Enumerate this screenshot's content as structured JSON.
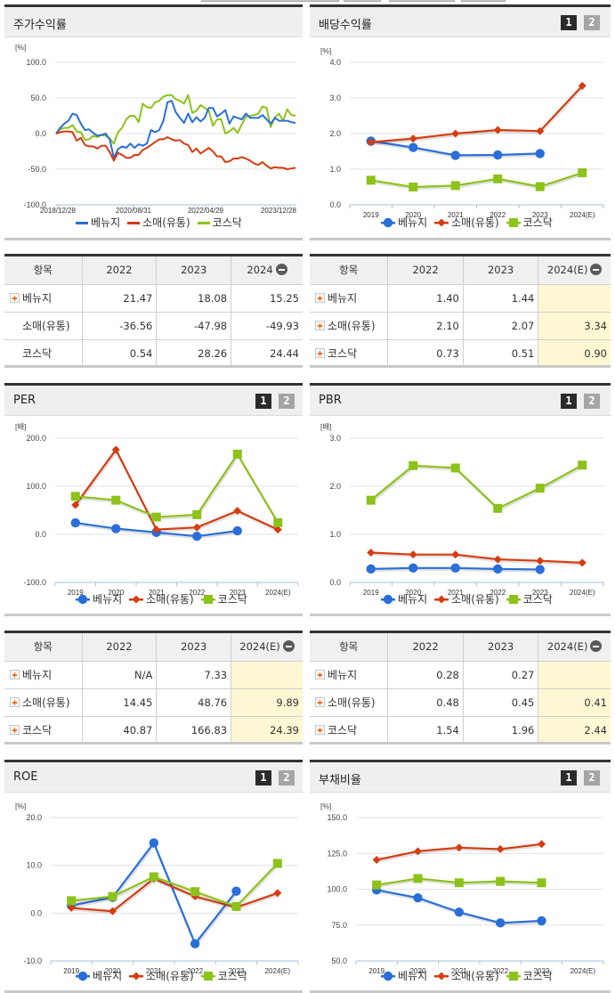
{
  "colors": {
    "venuzi": "#2a6ed8",
    "retail": "#d53c10",
    "kosdaq": "#8cc21a",
    "grid": "#e2e2e2",
    "estimate_bg": "#fdf8d3"
  },
  "legend": [
    "베뉴지",
    "소매(유통)",
    "코스닥"
  ],
  "pager": {
    "page1": "1",
    "page2": "2"
  },
  "panels": {
    "stock_return": {
      "title": "주가수익률",
      "unit": "[%]",
      "yticks": [
        "100.0",
        "50.0",
        "0.0",
        "-50.0",
        "-100.0"
      ],
      "xticks": [
        "2018/12/28",
        "2020/08/31",
        "2022/04/29",
        "2023/12/28"
      ]
    },
    "dividend": {
      "title": "배당수익률",
      "unit": "[%]",
      "yticks": [
        "4.0",
        "3.0",
        "2.0",
        "1.0",
        "0.0"
      ]
    },
    "per": {
      "title": "PER",
      "unit": "[배]",
      "yticks": [
        "200.0",
        "100.0",
        "0.0",
        "-100.0"
      ]
    },
    "pbr": {
      "title": "PBR",
      "unit": "[배]",
      "yticks": [
        "3.0",
        "2.0",
        "1.0",
        "0.0"
      ]
    },
    "roe": {
      "title": "ROE",
      "unit": "[%]",
      "yticks": [
        "20.0",
        "10.0",
        "0.0",
        "-10.0"
      ]
    },
    "debt": {
      "title": "부채비율",
      "unit": "[%]",
      "yticks": [
        "150.0",
        "125.0",
        "100.0",
        "75.0",
        "50.0"
      ]
    }
  },
  "years": [
    "2019",
    "2020",
    "2021",
    "2022",
    "2023",
    "2024(E)"
  ],
  "tables": {
    "stock_return": {
      "headers": [
        "항목",
        "2022",
        "2023",
        "2024"
      ],
      "rows": [
        {
          "label": "베뉴지",
          "expandable": true,
          "values": [
            "21.47",
            "18.08",
            "15.25"
          ]
        },
        {
          "label": "소매(유통)",
          "expandable": false,
          "values": [
            "-36.56",
            "-47.98",
            "-49.93"
          ]
        },
        {
          "label": "코스닥",
          "expandable": false,
          "values": [
            "0.54",
            "28.26",
            "24.44"
          ]
        }
      ]
    },
    "dividend": {
      "headers": [
        "항목",
        "2022",
        "2023",
        "2024(E)"
      ],
      "rows": [
        {
          "label": "베뉴지",
          "expandable": true,
          "values": [
            "1.40",
            "1.44",
            ""
          ]
        },
        {
          "label": "소매(유통)",
          "expandable": true,
          "values": [
            "2.10",
            "2.07",
            "3.34"
          ]
        },
        {
          "label": "코스닥",
          "expandable": true,
          "values": [
            "0.73",
            "0.51",
            "0.90"
          ]
        }
      ]
    },
    "per": {
      "headers": [
        "항목",
        "2022",
        "2023",
        "2024(E)"
      ],
      "rows": [
        {
          "label": "베뉴지",
          "expandable": true,
          "values": [
            "N/A",
            "7.33",
            ""
          ]
        },
        {
          "label": "소매(유통)",
          "expandable": true,
          "values": [
            "14.45",
            "48.76",
            "9.89"
          ]
        },
        {
          "label": "코스닥",
          "expandable": true,
          "values": [
            "40.87",
            "166.83",
            "24.39"
          ]
        }
      ]
    },
    "pbr": {
      "headers": [
        "항목",
        "2022",
        "2023",
        "2024(E)"
      ],
      "rows": [
        {
          "label": "베뉴지",
          "expandable": true,
          "values": [
            "0.28",
            "0.27",
            ""
          ]
        },
        {
          "label": "소매(유통)",
          "expandable": true,
          "values": [
            "0.48",
            "0.45",
            "0.41"
          ]
        },
        {
          "label": "코스닥",
          "expandable": true,
          "values": [
            "1.54",
            "1.96",
            "2.44"
          ]
        }
      ]
    }
  },
  "chart_data": [
    {
      "type": "line",
      "title": "주가수익률",
      "ylabel": "[%]",
      "ylim": [
        -100,
        100
      ],
      "yticks": [
        100,
        50,
        0,
        -50,
        -100
      ],
      "xticks": [
        "2018/12/28",
        "2020/08/31",
        "2022/04/29",
        "2023/12/28"
      ],
      "grid": true,
      "legend_position": "bottom",
      "series": [
        {
          "name": "베뉴지",
          "values": [
            0,
            8,
            14,
            18,
            28,
            26,
            14,
            5,
            6,
            1,
            -3,
            -2,
            0,
            -8,
            -34,
            -22,
            -18,
            -20,
            -14,
            -20,
            -15,
            -17,
            -14,
            5,
            2,
            5,
            18,
            44,
            46,
            30,
            22,
            15,
            28,
            16,
            23,
            17,
            22,
            36,
            36,
            24,
            28,
            33,
            14,
            24,
            22,
            20,
            28,
            22,
            22,
            22,
            26,
            20,
            14,
            22,
            18,
            18,
            18,
            16,
            15
          ]
        },
        {
          "name": "소매(유통)",
          "values": [
            0,
            2,
            3,
            3,
            2,
            -10,
            -6,
            -16,
            -18,
            -18,
            -21,
            -17,
            -17,
            -26,
            -38,
            -27,
            -30,
            -34,
            -34,
            -30,
            -30,
            -23,
            -20,
            -16,
            -12,
            -8,
            -8,
            -5,
            -8,
            -10,
            -9,
            -14,
            -16,
            -26,
            -21,
            -28,
            -24,
            -20,
            -25,
            -32,
            -32,
            -40,
            -39,
            -35,
            -35,
            -33,
            -35,
            -38,
            -42,
            -44,
            -40,
            -45,
            -49,
            -47,
            -48,
            -48,
            -50,
            -49,
            -48
          ]
        },
        {
          "name": "코스닥",
          "values": [
            0,
            6,
            8,
            8,
            12,
            3,
            2,
            -9,
            -8,
            -3,
            -5,
            -2,
            -3,
            -7,
            -14,
            2,
            8,
            20,
            25,
            25,
            16,
            42,
            37,
            36,
            44,
            46,
            52,
            54,
            54,
            48,
            46,
            42,
            54,
            29,
            32,
            40,
            36,
            32,
            11,
            20,
            20,
            0,
            3,
            8,
            1,
            13,
            24,
            25,
            26,
            28,
            38,
            36,
            9,
            23,
            28,
            18,
            34,
            26,
            25
          ]
        }
      ]
    },
    {
      "type": "line",
      "title": "배당수익률",
      "ylabel": "[%]",
      "ylim": [
        0,
        4
      ],
      "categories": [
        "2019",
        "2020",
        "2021",
        "2022",
        "2023",
        "2024(E)"
      ],
      "series": [
        {
          "name": "베뉴지",
          "values": [
            1.79,
            1.61,
            1.39,
            1.4,
            1.44,
            null
          ]
        },
        {
          "name": "소매(유통)",
          "values": [
            1.76,
            1.86,
            2.0,
            2.1,
            2.07,
            3.34
          ]
        },
        {
          "name": "코스닥",
          "values": [
            0.69,
            0.5,
            0.54,
            0.73,
            0.51,
            0.9
          ]
        }
      ]
    },
    {
      "type": "line",
      "title": "PER",
      "ylabel": "[배]",
      "ylim": [
        -100,
        200
      ],
      "categories": [
        "2019",
        "2020",
        "2021",
        "2022",
        "2023",
        "2024(E)"
      ],
      "series": [
        {
          "name": "베뉴지",
          "values": [
            24,
            12,
            4,
            -4,
            7.33,
            null
          ]
        },
        {
          "name": "소매(유통)",
          "values": [
            61,
            176,
            10,
            14.45,
            48.76,
            9.89
          ]
        },
        {
          "name": "코스닥",
          "values": [
            79,
            71,
            36,
            40.87,
            166.83,
            24.39
          ]
        }
      ]
    },
    {
      "type": "line",
      "title": "PBR",
      "ylabel": "[배]",
      "ylim": [
        0,
        3
      ],
      "categories": [
        "2019",
        "2020",
        "2021",
        "2022",
        "2023",
        "2024(E)"
      ],
      "series": [
        {
          "name": "베뉴지",
          "values": [
            0.28,
            0.3,
            0.3,
            0.28,
            0.27,
            null
          ]
        },
        {
          "name": "소매(유통)",
          "values": [
            0.62,
            0.58,
            0.58,
            0.48,
            0.45,
            0.41
          ]
        },
        {
          "name": "코스닥",
          "values": [
            1.71,
            2.43,
            2.38,
            1.54,
            1.96,
            2.44
          ]
        }
      ]
    },
    {
      "type": "line",
      "title": "ROE",
      "ylabel": "[%]",
      "ylim": [
        -10,
        20
      ],
      "categories": [
        "2019",
        "2020",
        "2021",
        "2022",
        "2023",
        "2024(E)"
      ],
      "series": [
        {
          "name": "베뉴지",
          "values": [
            1.6,
            3.3,
            14.7,
            -6.4,
            4.6,
            null
          ]
        },
        {
          "name": "소매(유통)",
          "values": [
            1.1,
            0.4,
            7.2,
            3.5,
            1.2,
            4.2
          ]
        },
        {
          "name": "코스닥",
          "values": [
            2.6,
            3.5,
            7.6,
            4.5,
            1.4,
            10.4
          ]
        }
      ]
    },
    {
      "type": "line",
      "title": "부채비율",
      "ylabel": "[%]",
      "ylim": [
        50,
        150
      ],
      "categories": [
        "2019",
        "2020",
        "2021",
        "2022",
        "2023",
        "2024(E)"
      ],
      "series": [
        {
          "name": "베뉴지",
          "values": [
            99.5,
            94,
            84,
            76.5,
            78,
            null
          ]
        },
        {
          "name": "소매(유통)",
          "values": [
            120.5,
            126.5,
            129,
            128,
            131.5,
            null
          ]
        },
        {
          "name": "코스닥",
          "values": [
            103,
            107.5,
            104.5,
            105.5,
            104.5,
            null
          ]
        }
      ]
    }
  ]
}
